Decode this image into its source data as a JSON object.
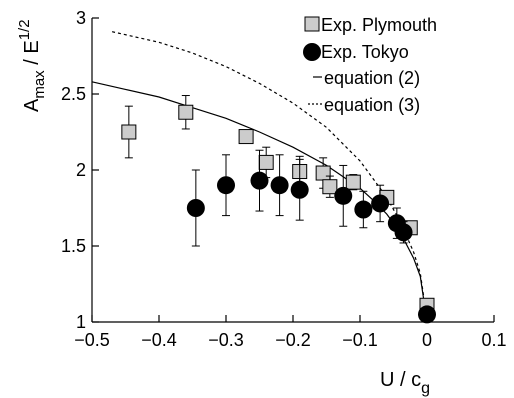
{
  "chart_data": {
    "type": "scatter",
    "xlabel": "U / c",
    "xlabel_sub": "g",
    "ylabel_main": "A",
    "ylabel_sub": "max",
    "ylabel_rest": " / E",
    "ylabel_sup": "1/2",
    "xlim": [
      -0.5,
      0.1
    ],
    "ylim": [
      1,
      3
    ],
    "xticks": [
      -0.5,
      -0.4,
      -0.3,
      -0.2,
      -0.1,
      0,
      0.1
    ],
    "xtick_labels": [
      "−0.5",
      "−0.4",
      "−0.3",
      "−0.2",
      "−0.1",
      "0",
      "0.1"
    ],
    "yticks": [
      1,
      1.5,
      2,
      2.5,
      3
    ],
    "ytick_labels": [
      "1",
      "1.5",
      "2",
      "2.5",
      "3"
    ],
    "legend_position": "top-right",
    "series": [
      {
        "name": "Exp. Plymouth",
        "marker": "square",
        "color": "#cccccc",
        "edge": "#000000",
        "points": [
          {
            "x": -0.445,
            "y": 2.25,
            "err": 0.17
          },
          {
            "x": -0.36,
            "y": 2.38,
            "err": 0.11
          },
          {
            "x": -0.27,
            "y": 2.22,
            "err": 0.0
          },
          {
            "x": -0.24,
            "y": 2.05,
            "err": 0.1
          },
          {
            "x": -0.19,
            "y": 1.99,
            "err": 0.1
          },
          {
            "x": -0.155,
            "y": 1.98,
            "err": 0.1
          },
          {
            "x": -0.145,
            "y": 1.89,
            "err": 0.07
          },
          {
            "x": -0.11,
            "y": 1.92,
            "err": 0.05
          },
          {
            "x": -0.06,
            "y": 1.82,
            "err": 0.04
          },
          {
            "x": -0.025,
            "y": 1.62,
            "err": 0.02
          },
          {
            "x": 0.0,
            "y": 1.11,
            "err": 0.03
          }
        ]
      },
      {
        "name": "Exp. Tokyo",
        "marker": "circle",
        "color": "#000000",
        "points": [
          {
            "x": -0.345,
            "y": 1.75,
            "err": 0.25
          },
          {
            "x": -0.3,
            "y": 1.9,
            "err": 0.2
          },
          {
            "x": -0.25,
            "y": 1.93,
            "err": 0.2
          },
          {
            "x": -0.22,
            "y": 1.9,
            "err": 0.2
          },
          {
            "x": -0.19,
            "y": 1.87,
            "err": 0.2
          },
          {
            "x": -0.125,
            "y": 1.83,
            "err": 0.2
          },
          {
            "x": -0.095,
            "y": 1.74,
            "err": 0.12
          },
          {
            "x": -0.07,
            "y": 1.78,
            "err": 0.12
          },
          {
            "x": -0.045,
            "y": 1.65,
            "err": 0.1
          },
          {
            "x": -0.035,
            "y": 1.59,
            "err": 0.07
          },
          {
            "x": 0.0,
            "y": 1.05,
            "err": 0.02
          }
        ]
      },
      {
        "name": "equation (2)",
        "line": "solid",
        "color": "#000000",
        "x": [
          -0.5,
          -0.45,
          -0.4,
          -0.35,
          -0.3,
          -0.25,
          -0.2,
          -0.15,
          -0.1,
          -0.08,
          -0.06,
          -0.04,
          -0.02,
          -0.01,
          0
        ],
        "y": [
          2.58,
          2.53,
          2.48,
          2.41,
          2.34,
          2.25,
          2.15,
          2.03,
          1.88,
          1.8,
          1.71,
          1.59,
          1.42,
          1.3,
          1.0
        ]
      },
      {
        "name": "equation (3)",
        "line": "dotted",
        "color": "#000000",
        "x": [
          -0.47,
          -0.4,
          -0.35,
          -0.3,
          -0.25,
          -0.2,
          -0.15,
          -0.1,
          -0.08,
          -0.06,
          -0.04,
          -0.02,
          -0.01,
          0
        ],
        "y": [
          2.91,
          2.84,
          2.77,
          2.68,
          2.57,
          2.44,
          2.28,
          2.06,
          1.94,
          1.82,
          1.66,
          1.46,
          1.32,
          1.02
        ]
      }
    ]
  }
}
